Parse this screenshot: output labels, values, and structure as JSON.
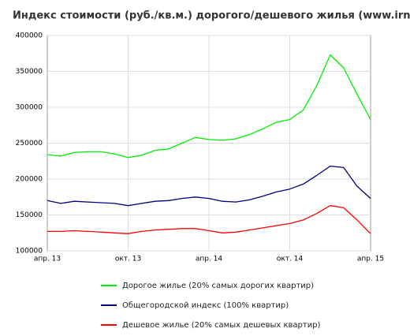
{
  "chart_data": {
    "type": "line",
    "title": "Индекс стоимости (руб./кв.м.) дорогого/дешевого жилья (www.irn.ru)",
    "categories": [
      "апр. 13",
      null,
      null,
      null,
      null,
      null,
      "окт. 13",
      null,
      null,
      null,
      null,
      null,
      "апр. 14",
      null,
      null,
      null,
      null,
      null,
      "окт. 14",
      null,
      null,
      null,
      null,
      null,
      "апр. 15"
    ],
    "series": [
      {
        "name": "Дорогое жилье (20% самых дорогих квартир)",
        "color": "#00ee00",
        "values": [
          234000,
          232000,
          237000,
          238000,
          238000,
          235000,
          230000,
          233000,
          240000,
          242000,
          250000,
          258000,
          255000,
          254000,
          256000,
          262000,
          270000,
          279000,
          283000,
          296000,
          330000,
          373000,
          355000,
          318000,
          283000
        ]
      },
      {
        "name": "Общегородской индекс (100% квартир)",
        "color": "#000080",
        "values": [
          170000,
          166000,
          169000,
          168000,
          167000,
          166000,
          163000,
          166000,
          169000,
          170000,
          173000,
          175000,
          173000,
          169000,
          168000,
          171000,
          176000,
          182000,
          186000,
          193000,
          205000,
          218000,
          216000,
          190000,
          173000
        ]
      },
      {
        "name": "Дешевое жилье (20% самых дешевых квартир)",
        "color": "#ff0000",
        "values": [
          127000,
          127000,
          128000,
          127000,
          126000,
          125000,
          124000,
          127000,
          129000,
          130000,
          131000,
          131000,
          128000,
          125000,
          126000,
          129000,
          132000,
          135000,
          138000,
          143000,
          152000,
          163000,
          160000,
          143000,
          124000
        ]
      }
    ],
    "ylim": [
      100000,
      400000
    ],
    "yticks": [
      100000,
      150000,
      200000,
      250000,
      300000,
      350000,
      400000
    ],
    "grid": true
  }
}
